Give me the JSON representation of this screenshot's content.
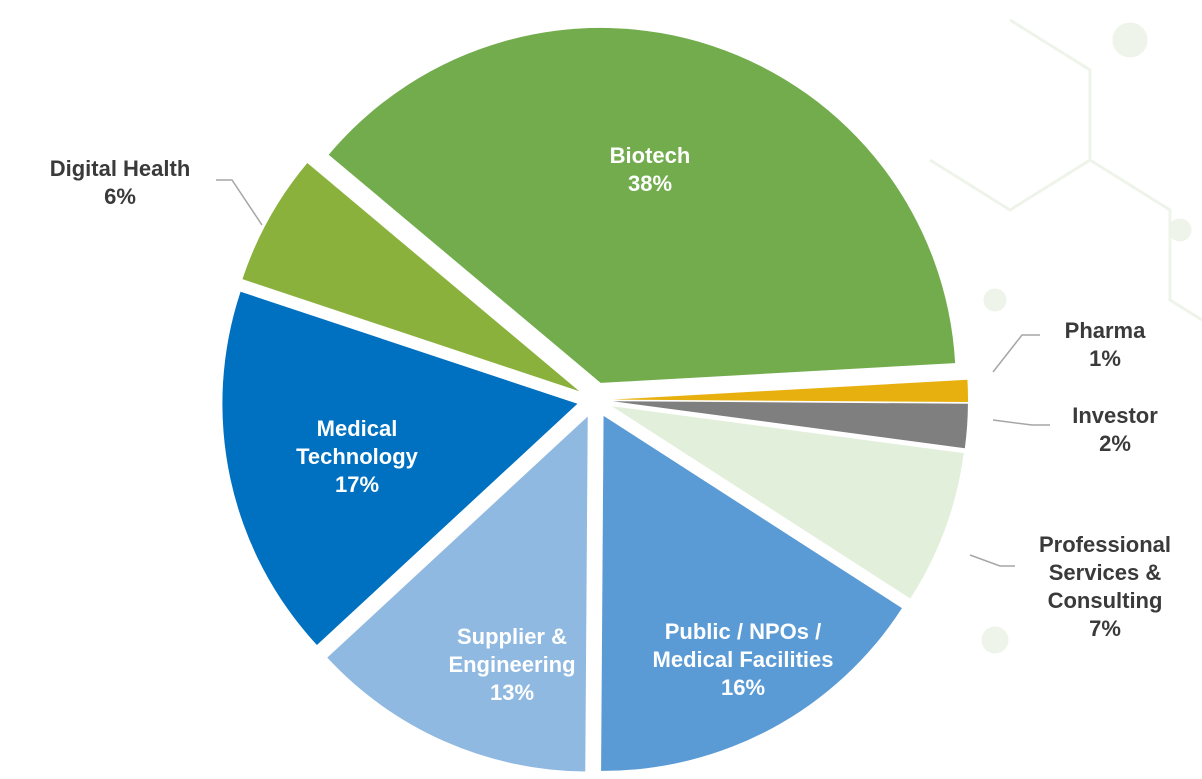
{
  "chart_data": {
    "type": "pie",
    "categories": [
      "Biotech",
      "Pharma",
      "Investor",
      "Professional Services & Consulting",
      "Public  / NPOs / Medical Facilities",
      "Supplier & Engineering",
      "Medical Technology",
      "Digital Health"
    ],
    "values": [
      38,
      1,
      2,
      7,
      16,
      13,
      17,
      6
    ],
    "value_labels": [
      "38%",
      "1%",
      "2%",
      "7%",
      "16%",
      "13%",
      "17%",
      "6%"
    ],
    "colors": [
      "#72ac4d",
      "#e8b00f",
      "#7f7f7f",
      "#e2efda",
      "#5b9bd5",
      "#8fb9e0",
      "#0070c0",
      "#8ab13c"
    ]
  }
}
